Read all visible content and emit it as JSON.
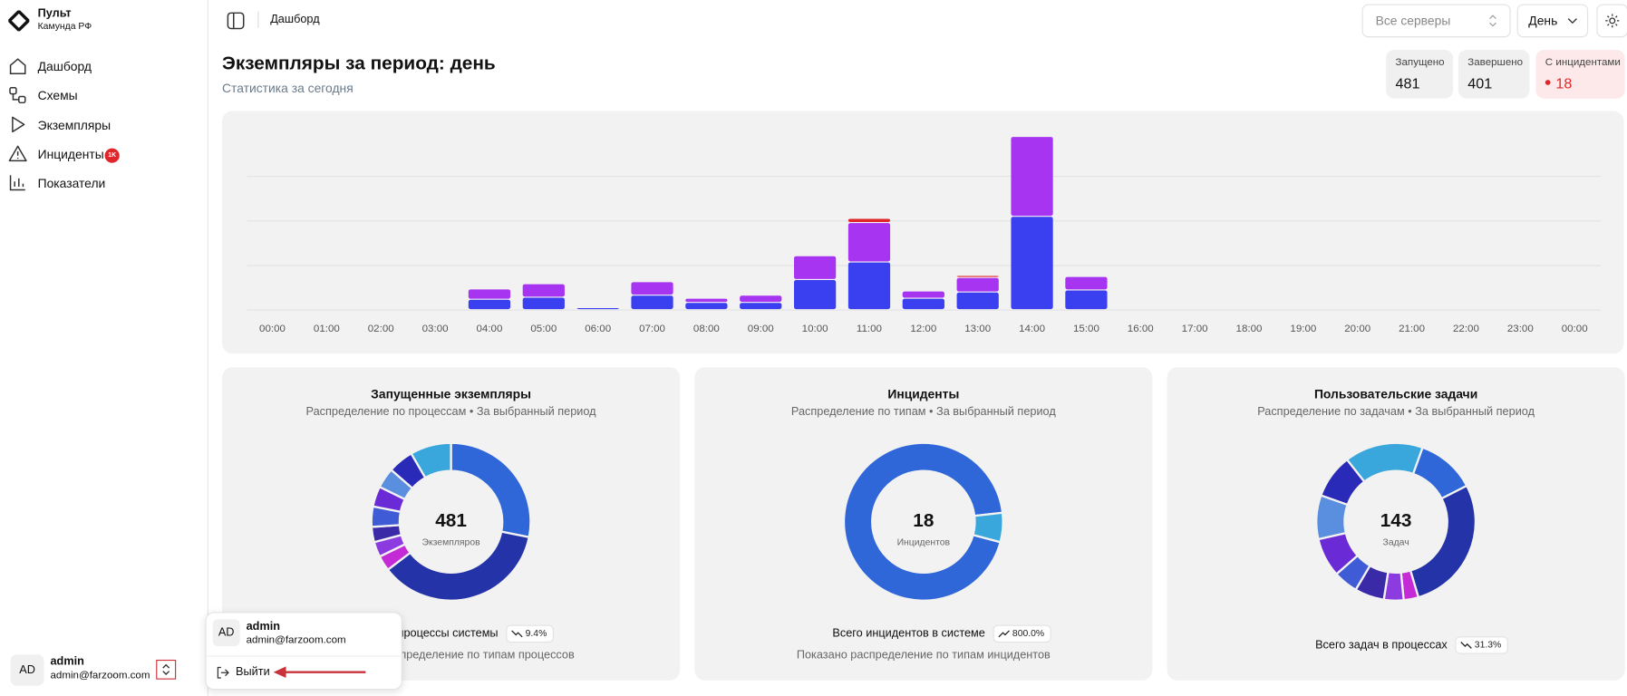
{
  "sidebar": {
    "brand": "Пульт",
    "org": "Камунда РФ",
    "nav": [
      "Дашборд",
      "Схемы",
      "Экземпляры",
      "Инциденты",
      "Показатели"
    ],
    "badge": "1K",
    "user": {
      "initials": "AD",
      "name": "admin",
      "email": "admin@farzoom.com"
    }
  },
  "header": {
    "breadcrumb": "Дашборд",
    "server_select": "Все серверы",
    "period_select": "День"
  },
  "page": {
    "title": "Экземпляры за период: день",
    "subtitle": "Статистика за сегодня"
  },
  "stats": [
    {
      "label": "Запущено",
      "value": 481
    },
    {
      "label": "Завершено",
      "value": 401
    },
    {
      "label": "С инцидентами",
      "value": 18
    }
  ],
  "chart_data": {
    "type": "bar",
    "stacked": true,
    "categories": [
      "00:00",
      "01:00",
      "02:00",
      "03:00",
      "04:00",
      "05:00",
      "06:00",
      "07:00",
      "08:00",
      "09:00",
      "10:00",
      "11:00",
      "12:00",
      "13:00",
      "14:00",
      "15:00",
      "16:00",
      "17:00",
      "18:00",
      "19:00",
      "20:00",
      "21:00",
      "22:00",
      "23:00",
      "00:00"
    ],
    "series": [
      {
        "color": "#3a3ff0",
        "values": [
          0,
          0,
          0,
          0,
          10,
          12,
          2,
          14,
          7,
          7,
          29,
          46,
          11,
          17,
          90,
          19,
          0,
          0,
          0,
          0,
          0,
          0,
          0,
          0,
          0
        ]
      },
      {
        "color": "#a634f0",
        "values": [
          0,
          0,
          0,
          0,
          10,
          13,
          1,
          13,
          4,
          7,
          23,
          38,
          7,
          14,
          77,
          13,
          0,
          0,
          0,
          0,
          0,
          0,
          0,
          0,
          0
        ]
      },
      {
        "color": "#e0262b",
        "values": [
          0,
          0,
          0,
          0,
          0,
          0,
          0,
          0,
          0,
          0,
          0,
          4,
          1,
          2,
          1,
          0,
          0,
          0,
          0,
          0,
          0,
          0,
          0,
          0,
          0
        ]
      }
    ],
    "ylim": [
      0,
      170
    ]
  },
  "donuts": [
    {
      "title": "Запущенные экземпляры",
      "subtitle": "Распределение по процессам • За выбранный период",
      "total": 481,
      "total_label": "Экземпляров",
      "summary": "Все процессы системы",
      "trend": "9.4%",
      "note": "Показано распределение по типам процессов",
      "segments": [
        {
          "color": "#2f67d8",
          "value": 27
        },
        {
          "color": "#2433a8",
          "value": 35
        },
        {
          "color": "#c42bd6",
          "value": 3
        },
        {
          "color": "#8c3be0",
          "value": 3
        },
        {
          "color": "#3a2aa8",
          "value": 3
        },
        {
          "color": "#3f5bd6",
          "value": 4
        },
        {
          "color": "#6a2bd6",
          "value": 4
        },
        {
          "color": "#5a8fe0",
          "value": 4
        },
        {
          "color": "#2a2ab8",
          "value": 5
        },
        {
          "color": "#39a7dc",
          "value": 8
        }
      ]
    },
    {
      "title": "Инциденты",
      "subtitle": "Распределение по типам • За выбранный период",
      "total": 18,
      "total_label": "Инцидентов",
      "summary": "Всего инцидентов в системе",
      "trend": "800.0%",
      "note": "Показано распределение по типам инцидентов",
      "segments": [
        {
          "color": "#2f67d8",
          "value": 94
        },
        {
          "color": "#39a7dc",
          "value": 6
        }
      ]
    },
    {
      "title": "Пользовательские задачи",
      "subtitle": "Распределение по задачам • За выбранный период",
      "total": 143,
      "total_label": "Задач",
      "summary": "Всего задач в процессах",
      "trend": "31.3%",
      "segments": [
        {
          "color": "#39a7dc",
          "value": 16
        },
        {
          "color": "#2f67d8",
          "value": 12
        },
        {
          "color": "#2433a8",
          "value": 28
        },
        {
          "color": "#c42bd6",
          "value": 3
        },
        {
          "color": "#8c3be0",
          "value": 4
        },
        {
          "color": "#3a2aa8",
          "value": 6
        },
        {
          "color": "#3f5bd6",
          "value": 5
        },
        {
          "color": "#6a2bd6",
          "value": 8
        },
        {
          "color": "#5a8fe0",
          "value": 9
        },
        {
          "color": "#2a2ab8",
          "value": 9
        }
      ]
    }
  ],
  "menu": {
    "initials": "AD",
    "name": "admin",
    "email": "admin@farzoom.com",
    "logout": "Выйти"
  }
}
